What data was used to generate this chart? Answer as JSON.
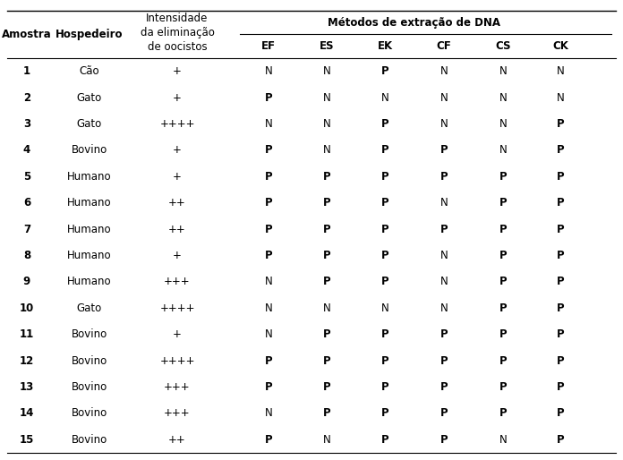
{
  "header_group_label": "Métodos de extração de DNA",
  "col0_header": "Amostra",
  "col1_header": "Hospedeiro",
  "col2_header": "Intensidade\nda eliminação\nde oocistos",
  "sub_cols": [
    "EF",
    "ES",
    "EK",
    "CF",
    "CS",
    "CK"
  ],
  "rows": [
    [
      "1",
      "Cão",
      "+",
      "N",
      "N",
      "P",
      "N",
      "N",
      "N"
    ],
    [
      "2",
      "Gato",
      "+",
      "P",
      "N",
      "N",
      "N",
      "N",
      "N"
    ],
    [
      "3",
      "Gato",
      "++++",
      "N",
      "N",
      "P",
      "N",
      "N",
      "P"
    ],
    [
      "4",
      "Bovino",
      "+",
      "P",
      "N",
      "P",
      "P",
      "N",
      "P"
    ],
    [
      "5",
      "Humano",
      "+",
      "P",
      "P",
      "P",
      "P",
      "P",
      "P"
    ],
    [
      "6",
      "Humano",
      "++",
      "P",
      "P",
      "P",
      "N",
      "P",
      "P"
    ],
    [
      "7",
      "Humano",
      "++",
      "P",
      "P",
      "P",
      "P",
      "P",
      "P"
    ],
    [
      "8",
      "Humano",
      "+",
      "P",
      "P",
      "P",
      "N",
      "P",
      "P"
    ],
    [
      "9",
      "Humano",
      "+++",
      "N",
      "P",
      "P",
      "N",
      "P",
      "P"
    ],
    [
      "10",
      "Gato",
      "++++",
      "N",
      "N",
      "N",
      "N",
      "P",
      "P"
    ],
    [
      "11",
      "Bovino",
      "+",
      "N",
      "P",
      "P",
      "P",
      "P",
      "P"
    ],
    [
      "12",
      "Bovino",
      "++++",
      "P",
      "P",
      "P",
      "P",
      "P",
      "P"
    ],
    [
      "13",
      "Bovino",
      "+++",
      "P",
      "P",
      "P",
      "P",
      "P",
      "P"
    ],
    [
      "14",
      "Bovino",
      "+++",
      "N",
      "P",
      "P",
      "P",
      "P",
      "P"
    ],
    [
      "15",
      "Bovino",
      "++",
      "P",
      "N",
      "P",
      "P",
      "N",
      "P"
    ]
  ],
  "bold_values": [
    "P"
  ],
  "background_color": "#ffffff",
  "text_color": "#000000",
  "font_size": 8.5,
  "header_font_size": 8.5
}
